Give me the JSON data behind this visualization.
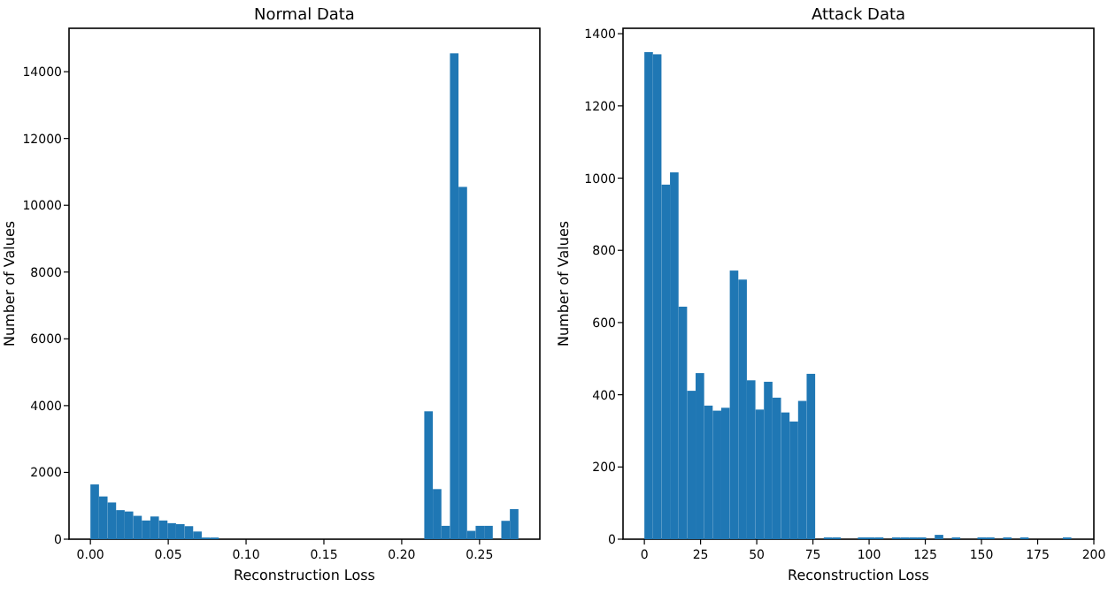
{
  "chart_data": [
    {
      "type": "histogram",
      "title": "Normal Data",
      "xlabel": "Reconstruction Loss",
      "ylabel": "Number of Values",
      "color": "#1f77b4",
      "bins": [
        0,
        0.0055,
        0.011,
        0.0165,
        0.022,
        0.0275,
        0.033,
        0.0385,
        0.044,
        0.0495,
        0.055,
        0.0605,
        0.066,
        0.0715,
        0.077,
        0.0825,
        0.088,
        0.0935,
        0.099,
        0.1045,
        0.11,
        0.1155,
        0.121,
        0.1265,
        0.132,
        0.1375,
        0.143,
        0.1485,
        0.154,
        0.1595,
        0.165,
        0.1705,
        0.176,
        0.1815,
        0.187,
        0.1925,
        0.198,
        0.2035,
        0.209,
        0.2145,
        0.22,
        0.2255,
        0.231,
        0.2365,
        0.242,
        0.2475,
        0.253,
        0.2585,
        0.264,
        0.2695,
        0.275
      ],
      "values": [
        1640,
        1280,
        1100,
        870,
        830,
        700,
        560,
        680,
        560,
        480,
        450,
        390,
        230,
        50,
        50,
        0,
        0,
        0,
        0,
        0,
        0,
        0,
        0,
        0,
        0,
        0,
        0,
        0,
        0,
        0,
        0,
        0,
        0,
        0,
        0,
        0,
        0,
        0,
        0,
        3830,
        1500,
        400,
        14550,
        10550,
        250,
        400,
        400,
        0,
        550,
        900
      ],
      "xlim": [
        -0.01375,
        0.28875
      ],
      "ylim": [
        0,
        15300
      ],
      "xticks": [
        {
          "value": 0,
          "label": "0.00"
        },
        {
          "value": 0.05,
          "label": "0.05"
        },
        {
          "value": 0.1,
          "label": "0.10"
        },
        {
          "value": 0.15,
          "label": "0.15"
        },
        {
          "value": 0.2,
          "label": "0.20"
        },
        {
          "value": 0.25,
          "label": "0.25"
        }
      ],
      "yticks": [
        0,
        2000,
        4000,
        6000,
        8000,
        10000,
        12000,
        14000
      ]
    },
    {
      "type": "histogram",
      "title": "Attack Data",
      "xlabel": "Reconstruction Loss",
      "ylabel": "Number of Values",
      "color": "#1f77b4",
      "bins": [
        0,
        3.8,
        7.6,
        11.4,
        15.2,
        19,
        22.8,
        26.6,
        30.4,
        34.2,
        38,
        41.8,
        45.6,
        49.4,
        53.2,
        57,
        60.8,
        64.6,
        68.4,
        72.2,
        76,
        79.8,
        83.6,
        87.4,
        91.2,
        95,
        98.8,
        102.6,
        106.4,
        110.2,
        114,
        117.8,
        121.6,
        125.4,
        129.2,
        133,
        136.8,
        140.6,
        144.4,
        148.2,
        152,
        155.8,
        159.6,
        163.4,
        167.2,
        171,
        174.8,
        178.6,
        182.4,
        186.2,
        190
      ],
      "values": [
        1349,
        1343,
        982,
        1016,
        644,
        411,
        460,
        370,
        356,
        364,
        744,
        719,
        440,
        359,
        436,
        392,
        351,
        326,
        383,
        458,
        0,
        5,
        5,
        0,
        0,
        5,
        5,
        5,
        0,
        5,
        5,
        5,
        5,
        0,
        12,
        0,
        5,
        0,
        0,
        5,
        5,
        0,
        5,
        0,
        5,
        0,
        0,
        0,
        0,
        5
      ],
      "xlim": [
        -9.5,
        200
      ],
      "ylim": [
        0,
        1415
      ],
      "xticks": [
        0,
        25,
        50,
        75,
        100,
        125,
        150,
        175,
        200
      ],
      "yticks": [
        0,
        200,
        400,
        600,
        800,
        1000,
        1200,
        1400
      ]
    }
  ]
}
